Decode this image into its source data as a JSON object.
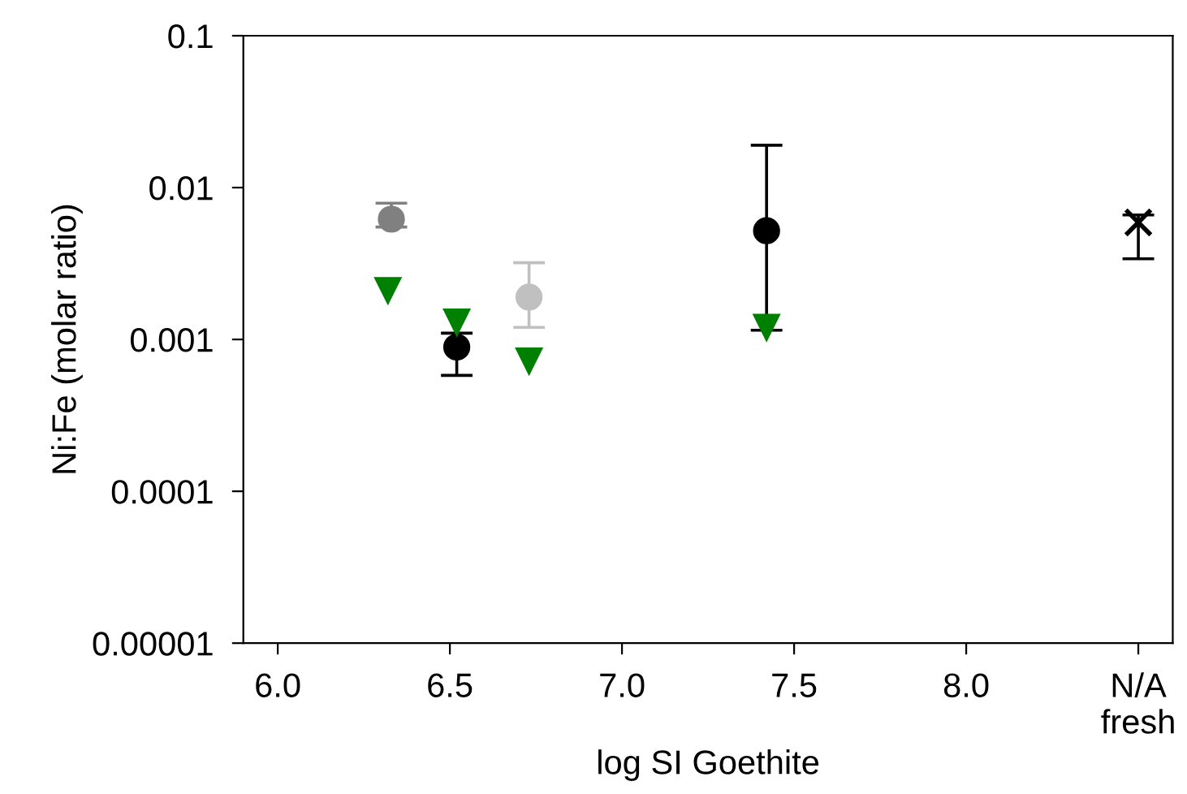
{
  "chart_data": {
    "type": "scatter",
    "xlabel": "log SI Goethite",
    "ylabel": "Ni:Fe (molar ratio)",
    "log": "y",
    "grid": false,
    "legend": false,
    "xlim": [
      5.9,
      8.6
    ],
    "xticks": [
      {
        "value": 6.0,
        "label": "6.0"
      },
      {
        "value": 6.5,
        "label": "6.5"
      },
      {
        "value": 7.0,
        "label": "7.0"
      },
      {
        "value": 7.5,
        "label": "7.5"
      },
      {
        "value": 8.0,
        "label": "8.0"
      },
      {
        "value": 8.5,
        "label": "N/A\nfresh"
      }
    ],
    "ylim": [
      1e-05,
      0.1
    ],
    "yticks": [
      {
        "value": 1e-05,
        "label": "0.00001"
      },
      {
        "value": 0.0001,
        "label": "0.0001"
      },
      {
        "value": 0.001,
        "label": "0.001"
      },
      {
        "value": 0.01,
        "label": "0.01"
      },
      {
        "value": 0.1,
        "label": "0.1"
      }
    ],
    "series": [
      {
        "color": "#000000",
        "marker": "circle",
        "x": [
          6.52
        ],
        "values": [
          0.00089
        ],
        "errors": [
          [
            0.00058,
            0.0011
          ]
        ]
      },
      {
        "color": "#c0c0c0",
        "marker": "circle",
        "x": [
          6.73
        ],
        "values": [
          0.0019
        ],
        "errors": [
          [
            0.0012,
            0.0032
          ]
        ]
      },
      {
        "color": "#808080",
        "marker": "circle",
        "x": [
          6.33
        ],
        "values": [
          0.0062
        ],
        "errors": [
          [
            0.0055,
            0.0079
          ]
        ]
      },
      {
        "color": "#000000",
        "marker": "circle",
        "x": [
          7.42
        ],
        "values": [
          0.0052
        ],
        "errors": [
          [
            0.00115,
            0.019
          ]
        ]
      },
      {
        "color": "#000000",
        "marker": "cross",
        "x": [
          8.5
        ],
        "values": [
          0.0059
        ],
        "errors": [
          [
            0.0034,
            0.0066
          ]
        ]
      },
      {
        "color": "#008000",
        "marker": "triangle",
        "x": [
          6.32,
          6.52,
          6.73,
          7.42
        ],
        "values": [
          0.0021,
          0.0013,
          0.00072,
          0.0012
        ]
      }
    ]
  }
}
